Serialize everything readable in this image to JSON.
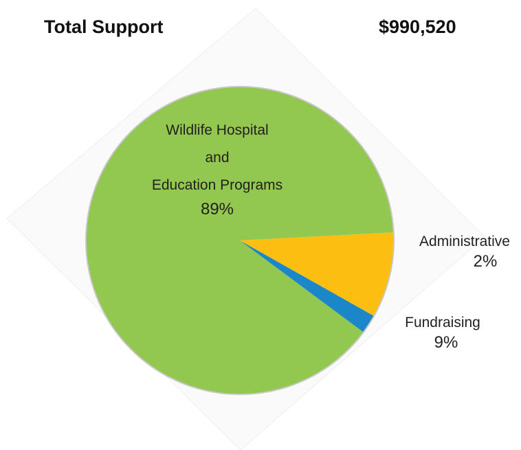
{
  "header": {
    "label": "Total Support",
    "value": "$990,520"
  },
  "colors": {
    "programs": "#92c750",
    "fundraising": "#fcbf11",
    "administrative": "#1b87c8",
    "pie_border": "#c8c8c8",
    "backdrop": "#fafafa"
  },
  "chart_data": {
    "type": "pie",
    "slices": [
      {
        "name_lines": [
          "Wildlife Hospital",
          "and",
          "Education Programs"
        ],
        "value": 89,
        "label": "89%",
        "color": "#92c750"
      },
      {
        "name_lines": [
          "Administrative"
        ],
        "value": 2,
        "label": "2%",
        "color": "#1b87c8"
      },
      {
        "name_lines": [
          "Fundraising"
        ],
        "value": 9,
        "label": "9%",
        "color": "#fcbf11"
      }
    ]
  }
}
